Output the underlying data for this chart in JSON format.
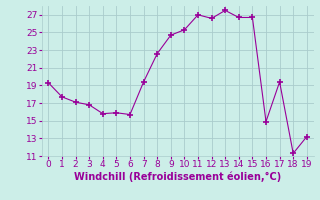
{
  "x": [
    0,
    1,
    2,
    3,
    4,
    5,
    6,
    7,
    8,
    9,
    10,
    11,
    12,
    13,
    14,
    15,
    16,
    17,
    18,
    19
  ],
  "y": [
    19.3,
    17.7,
    17.1,
    16.8,
    15.8,
    15.9,
    15.7,
    19.4,
    22.6,
    24.7,
    25.3,
    27.0,
    26.6,
    27.5,
    26.7,
    26.7,
    14.9,
    19.4,
    11.3,
    13.2
  ],
  "line_color": "#990099",
  "marker": "+",
  "marker_size": 4,
  "marker_lw": 1.2,
  "bg_color": "#cceee8",
  "grid_color": "#aacccc",
  "xlabel": "Windchill (Refroidissement éolien,°C)",
  "xlim": [
    -0.5,
    19.5
  ],
  "ylim": [
    11,
    28
  ],
  "yticks": [
    11,
    13,
    15,
    17,
    19,
    21,
    23,
    25,
    27
  ],
  "xticks": [
    0,
    1,
    2,
    3,
    4,
    5,
    6,
    7,
    8,
    9,
    10,
    11,
    12,
    13,
    14,
    15,
    16,
    17,
    18,
    19
  ],
  "tick_label_color": "#990099",
  "font_size_xlabel": 7,
  "font_size_tick": 6.5
}
